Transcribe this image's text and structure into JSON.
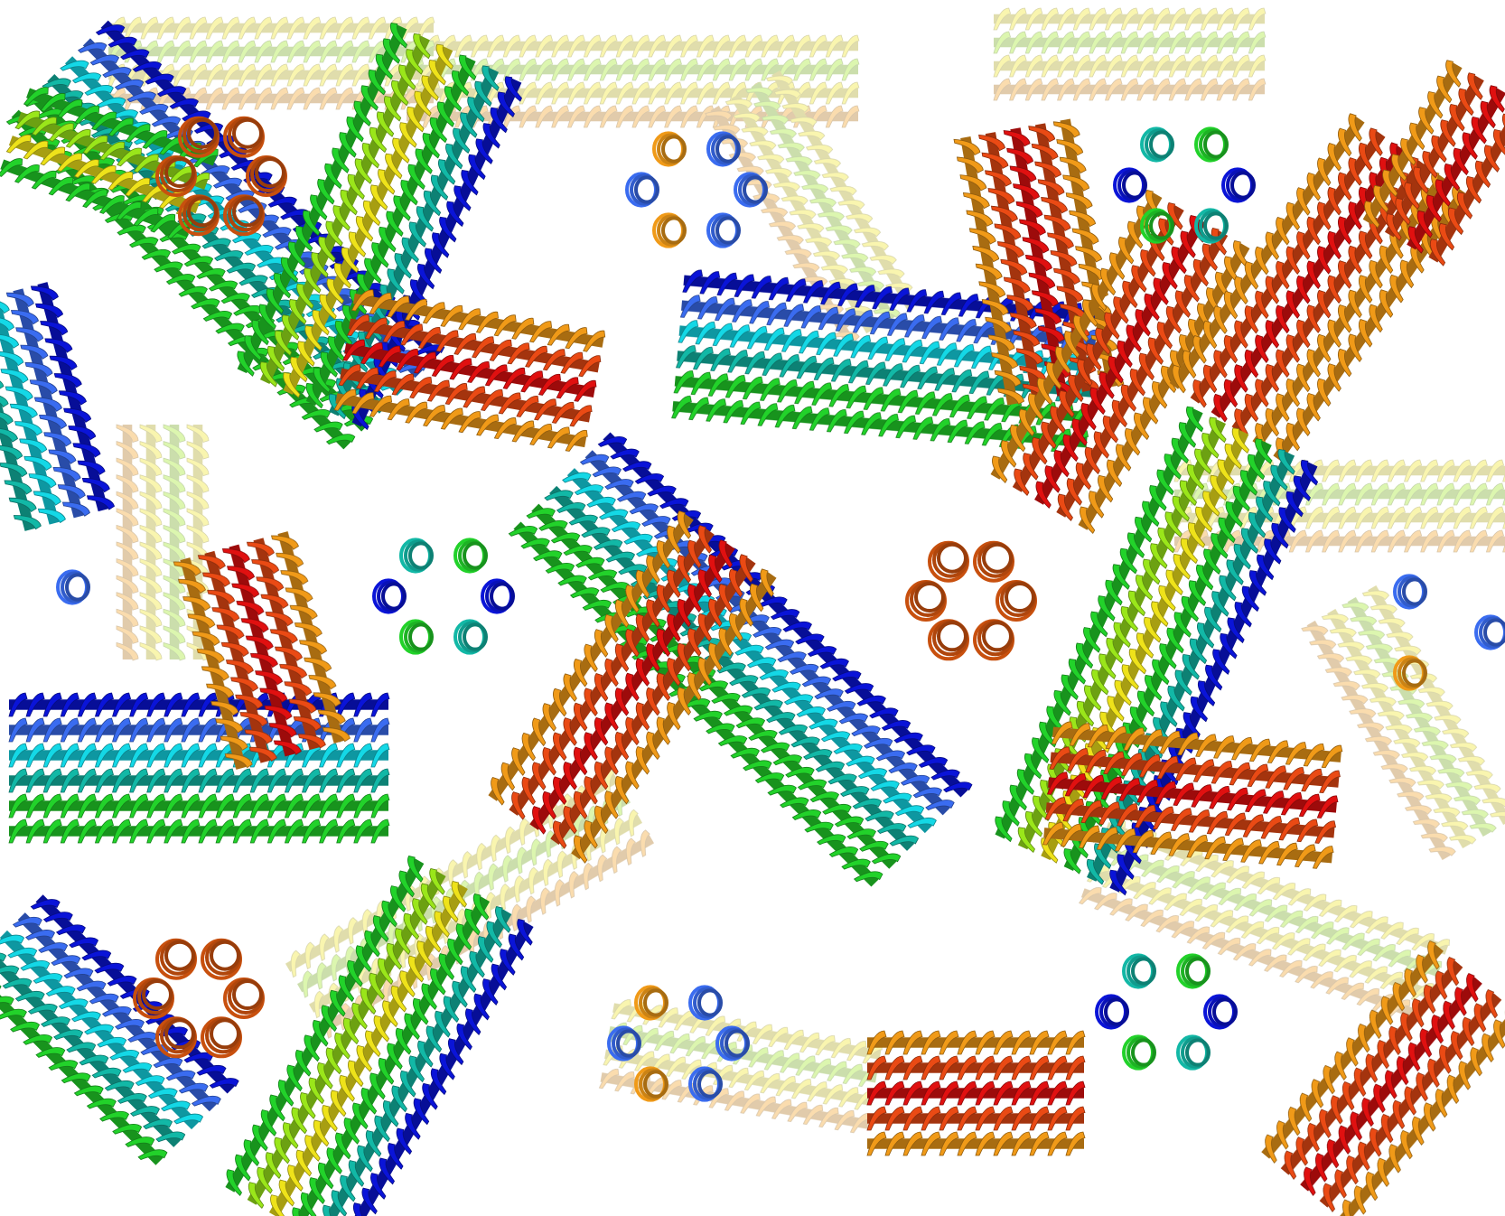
{
  "image": {
    "kind": "protein-crystal-packing-render",
    "style": "cartoon-helices-rainbow",
    "background": "#ffffff",
    "palette": {
      "blue": "#0a14d8",
      "light-blue": "#3a6cf0",
      "cyan": "#14d8e6",
      "teal": "#12b8a6",
      "green": "#22d22a",
      "yellow-green": "#9ae61a",
      "yellow": "#eee21a",
      "orange": "#f09a18",
      "red-orange": "#ea4a14",
      "red": "#e01010",
      "dark-orange": "#c8500e"
    }
  }
}
